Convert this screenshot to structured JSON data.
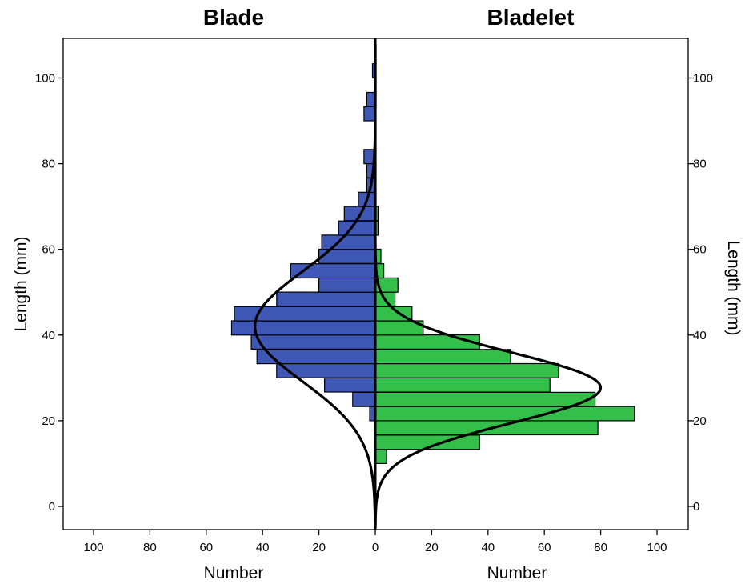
{
  "chart_data": {
    "type": "back-to-back histogram",
    "y_axis": {
      "label": "Length (mm)",
      "range": [
        -5,
        108
      ],
      "ticks": [
        0,
        20,
        40,
        60,
        80,
        100
      ],
      "tick_labels": [
        "0",
        "20",
        "40",
        "60",
        "80",
        "100"
      ]
    },
    "x_axis": {
      "label": "Number",
      "range_each_side": [
        0,
        110
      ],
      "ticks": [
        0,
        20,
        40,
        60,
        80,
        100
      ],
      "tick_labels": [
        "0",
        "20",
        "40",
        "60",
        "80",
        "100"
      ]
    },
    "bin_width": 3.33,
    "series": [
      {
        "name": "Blade",
        "side": "left",
        "color": "#3F57B5",
        "bins": [
          {
            "lower": 20.0,
            "count": 2
          },
          {
            "lower": 23.3,
            "count": 8
          },
          {
            "lower": 26.7,
            "count": 18
          },
          {
            "lower": 30.0,
            "count": 35
          },
          {
            "lower": 33.3,
            "count": 42
          },
          {
            "lower": 36.7,
            "count": 44
          },
          {
            "lower": 40.0,
            "count": 51
          },
          {
            "lower": 43.3,
            "count": 50
          },
          {
            "lower": 46.7,
            "count": 35
          },
          {
            "lower": 50.0,
            "count": 20
          },
          {
            "lower": 53.3,
            "count": 30
          },
          {
            "lower": 56.7,
            "count": 20
          },
          {
            "lower": 60.0,
            "count": 19
          },
          {
            "lower": 63.3,
            "count": 13
          },
          {
            "lower": 66.7,
            "count": 11
          },
          {
            "lower": 70.0,
            "count": 6
          },
          {
            "lower": 73.3,
            "count": 3
          },
          {
            "lower": 76.7,
            "count": 3
          },
          {
            "lower": 80.0,
            "count": 4
          },
          {
            "lower": 90.0,
            "count": 4
          },
          {
            "lower": 93.3,
            "count": 3
          },
          {
            "lower": 100.0,
            "count": 1
          }
        ],
        "normal_curve": {
          "mean": 42,
          "sd": 12.8,
          "peak_count": 42.7
        }
      },
      {
        "name": "Bladelet",
        "side": "right",
        "color": "#33BF4A",
        "bins": [
          {
            "lower": 10.0,
            "count": 4
          },
          {
            "lower": 13.3,
            "count": 37
          },
          {
            "lower": 16.7,
            "count": 79
          },
          {
            "lower": 20.0,
            "count": 92
          },
          {
            "lower": 23.3,
            "count": 78
          },
          {
            "lower": 26.7,
            "count": 62
          },
          {
            "lower": 30.0,
            "count": 65
          },
          {
            "lower": 33.3,
            "count": 48
          },
          {
            "lower": 36.7,
            "count": 37
          },
          {
            "lower": 40.0,
            "count": 17
          },
          {
            "lower": 43.3,
            "count": 13
          },
          {
            "lower": 46.7,
            "count": 7
          },
          {
            "lower": 50.0,
            "count": 8
          },
          {
            "lower": 53.3,
            "count": 3
          },
          {
            "lower": 56.7,
            "count": 2
          },
          {
            "lower": 63.3,
            "count": 1
          },
          {
            "lower": 66.7,
            "count": 1
          }
        ],
        "normal_curve": {
          "mean": 27.7,
          "sd": 8.2,
          "peak_count": 80
        }
      }
    ]
  }
}
